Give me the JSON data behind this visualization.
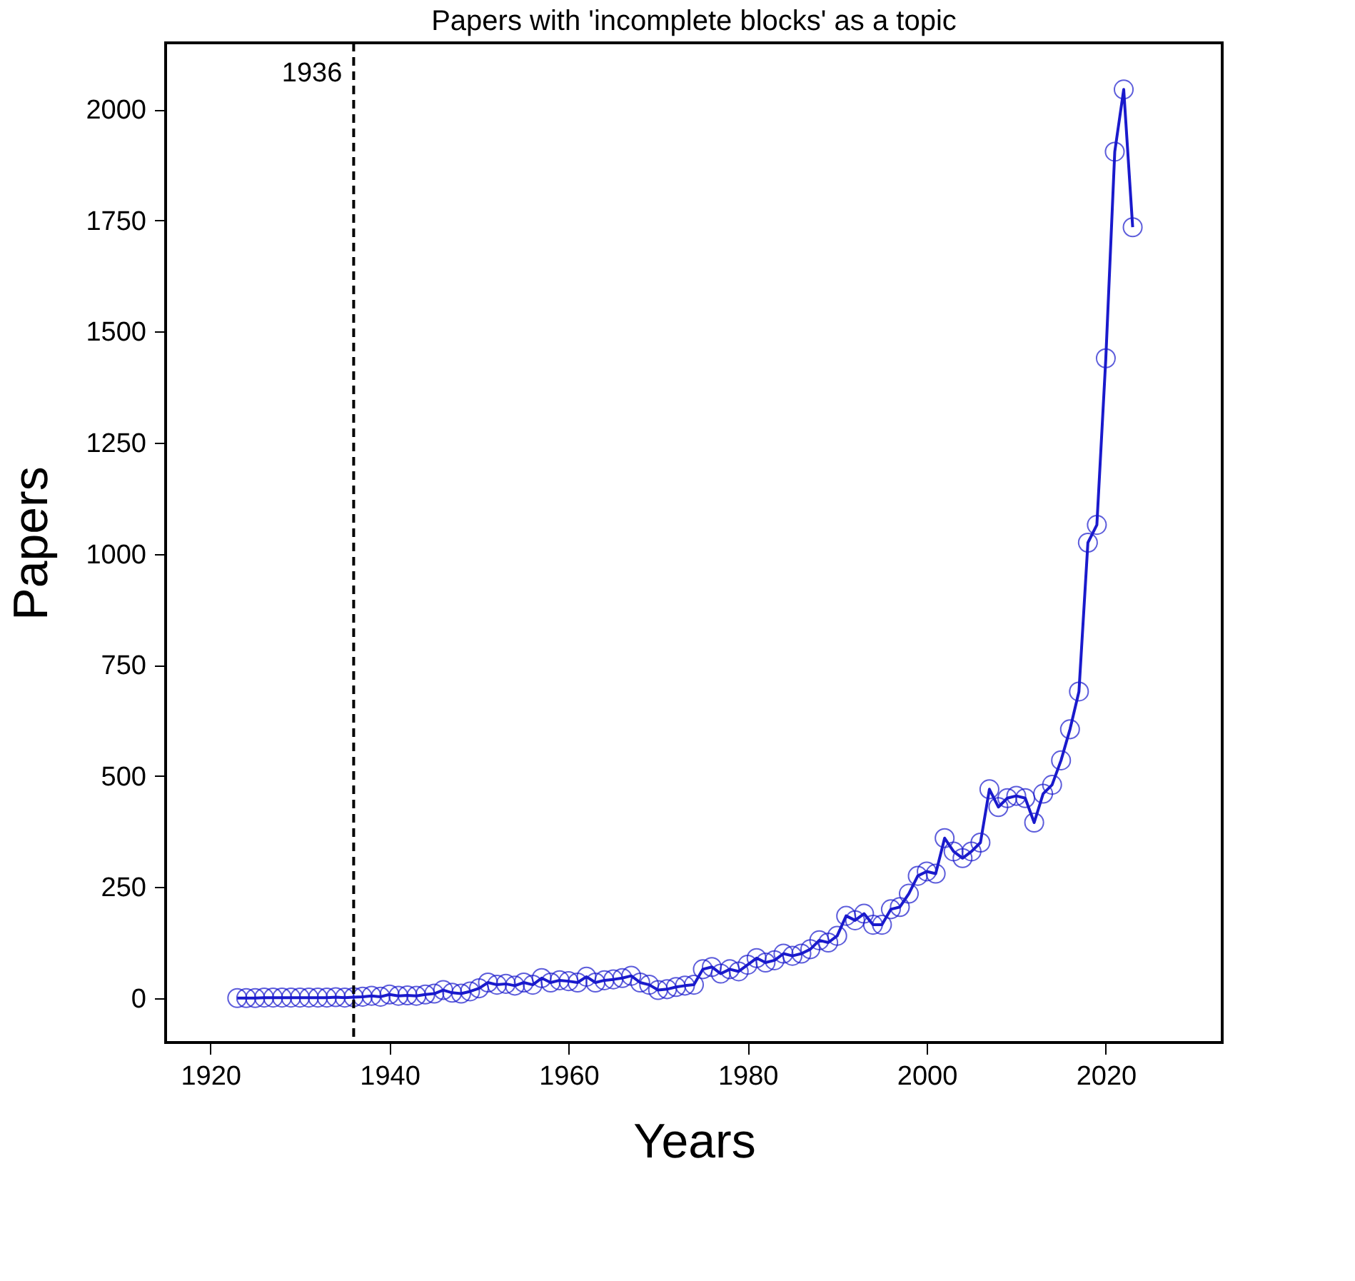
{
  "chart_data": {
    "type": "line",
    "title": "Papers with 'incomplete blocks' as a topic",
    "xlabel": "Years",
    "ylabel": "Papers",
    "x": [
      1923,
      1924,
      1925,
      1926,
      1927,
      1928,
      1929,
      1930,
      1931,
      1932,
      1933,
      1934,
      1935,
      1936,
      1937,
      1938,
      1939,
      1940,
      1941,
      1942,
      1943,
      1944,
      1945,
      1946,
      1947,
      1948,
      1949,
      1950,
      1951,
      1952,
      1953,
      1954,
      1955,
      1956,
      1957,
      1958,
      1959,
      1960,
      1961,
      1962,
      1963,
      1964,
      1965,
      1966,
      1967,
      1968,
      1969,
      1970,
      1971,
      1972,
      1973,
      1974,
      1975,
      1976,
      1977,
      1978,
      1979,
      1980,
      1981,
      1982,
      1983,
      1984,
      1985,
      1986,
      1987,
      1988,
      1989,
      1990,
      1991,
      1992,
      1993,
      1994,
      1995,
      1996,
      1997,
      1998,
      1999,
      2000,
      2001,
      2002,
      2003,
      2004,
      2005,
      2006,
      2007,
      2008,
      2009,
      2010,
      2011,
      2012,
      2013,
      2014,
      2015,
      2016,
      2017,
      2018,
      2019,
      2020,
      2021,
      2022,
      2023
    ],
    "series": [
      {
        "color": "#1a1acc",
        "values": [
          0,
          0,
          0,
          1,
          1,
          1,
          1,
          1,
          1,
          1,
          1,
          2,
          1,
          2,
          3,
          5,
          3,
          8,
          5,
          6,
          5,
          8,
          10,
          18,
          12,
          10,
          15,
          22,
          35,
          30,
          32,
          28,
          35,
          30,
          45,
          35,
          40,
          38,
          35,
          48,
          35,
          40,
          42,
          45,
          50,
          35,
          30,
          18,
          20,
          25,
          28,
          30,
          65,
          70,
          55,
          65,
          60,
          75,
          90,
          80,
          85,
          100,
          95,
          100,
          110,
          130,
          125,
          140,
          185,
          175,
          190,
          165,
          165,
          200,
          205,
          235,
          275,
          285,
          280,
          360,
          330,
          315,
          330,
          350,
          470,
          430,
          450,
          455,
          450,
          395,
          460,
          480,
          535,
          605,
          690,
          1025,
          1065,
          1440,
          1905,
          2045,
          1735
        ]
      }
    ],
    "xlim": [
      1915,
      2033
    ],
    "ylim": [
      -100,
      2150
    ],
    "xticks": [
      1920,
      1940,
      1960,
      1980,
      2000,
      2020
    ],
    "yticks": [
      0,
      250,
      500,
      750,
      1000,
      1250,
      1500,
      1750,
      2000
    ],
    "marker": "circle",
    "line_style": "solid",
    "grid": false,
    "ref_lines": [
      {
        "axis": "x",
        "value": 1936,
        "label": "1936",
        "color": "#000000",
        "line_style": "dashed"
      }
    ]
  }
}
